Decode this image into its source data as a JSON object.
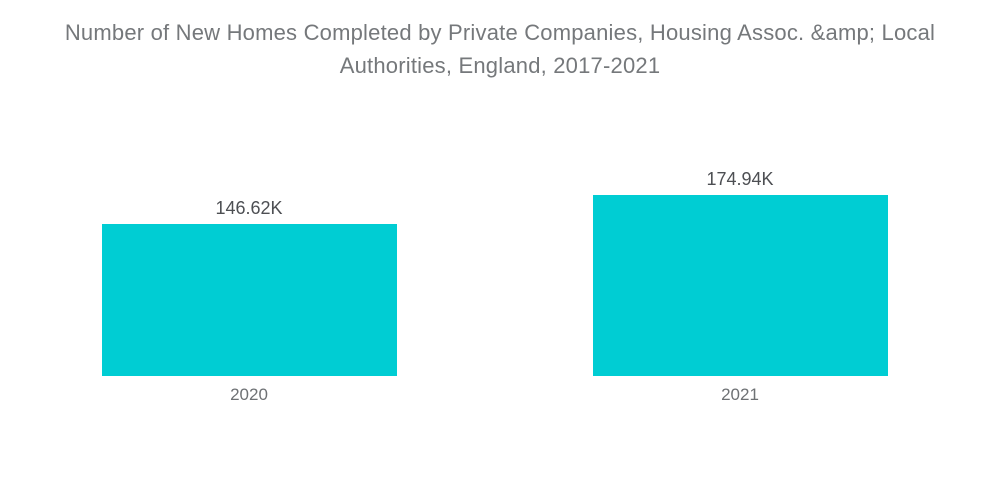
{
  "chart_data": {
    "type": "bar",
    "title": "Number of New Homes Completed by Private Companies, Housing Assoc. &amp; Local Authorities, England, 2017-2021",
    "title_lines": [
      "Number of New Homes Completed by Private Companies, Housing Assoc. &amp; Local",
      "Authorities, England, 2017-2021"
    ],
    "categories": [
      "2020",
      "2021"
    ],
    "values": [
      146.62,
      174.94
    ],
    "value_labels": [
      "146.62K",
      "174.94K"
    ],
    "unit": "K",
    "xlabel": "",
    "ylabel": "",
    "ylim": [
      0,
      174.94
    ],
    "grid": false,
    "legend": false,
    "bar_color": "#00CDD3",
    "title_color": "#75787B",
    "value_label_color": "#4D4F53",
    "category_label_color": "#6E7174",
    "background_color": "#ffffff"
  }
}
